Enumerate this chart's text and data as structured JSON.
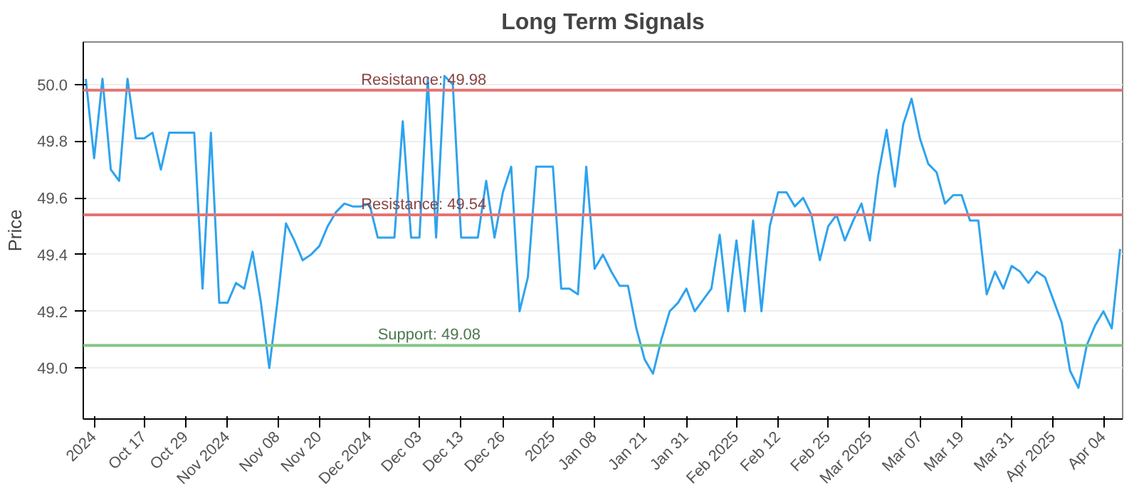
{
  "chart_data": {
    "type": "line",
    "title": "Long Term Signals",
    "ylabel": "Price",
    "categories": [
      null,
      "2024",
      null,
      null,
      null,
      null,
      null,
      "Oct 17",
      null,
      null,
      null,
      null,
      "Oct 29",
      null,
      null,
      null,
      null,
      "Nov 2024",
      null,
      null,
      null,
      null,
      null,
      "Nov 08",
      null,
      null,
      null,
      null,
      "Nov 20",
      null,
      null,
      null,
      null,
      null,
      "Dec 2024",
      null,
      null,
      null,
      null,
      null,
      "Dec 03",
      null,
      null,
      null,
      null,
      "Dec 13",
      null,
      null,
      null,
      null,
      "Dec 26",
      null,
      null,
      null,
      null,
      null,
      "2025",
      null,
      null,
      null,
      null,
      "Jan 08",
      null,
      null,
      null,
      null,
      null,
      "Jan 21",
      null,
      null,
      null,
      null,
      "Jan 31",
      null,
      null,
      null,
      null,
      null,
      "Feb 2025",
      null,
      null,
      null,
      null,
      "Feb 12",
      null,
      null,
      null,
      null,
      null,
      "Feb 25",
      null,
      null,
      null,
      null,
      "Mar 2025",
      null,
      null,
      null,
      null,
      null,
      "Mar 07",
      null,
      null,
      null,
      null,
      "Mar 19",
      null,
      null,
      null,
      null,
      null,
      "Mar 31",
      null,
      null,
      null,
      null,
      "Apr 2025",
      null,
      null,
      null,
      null,
      null,
      "Apr 04",
      null,
      null
    ],
    "series": [
      {
        "color": "#2ea3ee",
        "values": [
          50.02,
          49.74,
          50.02,
          49.7,
          49.66,
          50.02,
          49.81,
          49.81,
          49.83,
          49.7,
          49.83,
          49.83,
          49.83,
          49.83,
          49.28,
          49.83,
          49.23,
          49.23,
          49.3,
          49.28,
          49.41,
          49.23,
          49.0,
          49.24,
          49.51,
          49.45,
          49.38,
          49.4,
          49.43,
          49.5,
          49.55,
          49.58,
          49.57,
          49.57,
          49.58,
          49.46,
          49.46,
          49.46,
          49.87,
          49.46,
          49.46,
          50.02,
          49.46,
          50.03,
          50.0,
          49.46,
          49.46,
          49.46,
          49.66,
          49.46,
          49.62,
          49.71,
          49.2,
          49.32,
          49.71,
          49.71,
          49.71,
          49.28,
          49.28,
          49.26,
          49.71,
          49.35,
          49.4,
          49.34,
          49.29,
          49.29,
          49.14,
          49.03,
          48.98,
          49.1,
          49.2,
          49.23,
          49.28,
          49.2,
          49.24,
          49.28,
          49.47,
          49.2,
          49.45,
          49.2,
          49.52,
          49.2,
          49.5,
          49.62,
          49.62,
          49.57,
          49.6,
          49.54,
          49.38,
          49.5,
          49.54,
          49.45,
          49.52,
          49.58,
          49.45,
          49.68,
          49.84,
          49.64,
          49.86,
          49.95,
          49.81,
          49.72,
          49.69,
          49.58,
          49.61,
          49.61,
          49.52,
          49.52,
          49.26,
          49.34,
          49.28,
          49.36,
          49.34,
          49.3,
          49.34,
          49.32,
          49.24,
          49.16,
          48.99,
          48.93,
          49.08,
          49.15,
          49.2,
          49.14,
          49.42
        ]
      }
    ],
    "ylim": [
      48.82,
      50.15
    ],
    "yticks": [
      {
        "value": 49.0,
        "label": "49.0"
      },
      49.2,
      49.4,
      49.6,
      49.8,
      {
        "value": 50.0,
        "label": "50.0"
      }
    ],
    "grid": "y",
    "marker": "none",
    "line_style": "solid",
    "ref_lines": [
      {
        "axis": "y",
        "value": 49.98,
        "label": "Resistance: 49.98",
        "color": "#e57373"
      },
      {
        "axis": "y",
        "value": 49.54,
        "label": "Resistance: 49.54",
        "color": "#e57373"
      },
      {
        "axis": "y",
        "value": 49.08,
        "label": "Support: 49.08",
        "color": "#81c784"
      }
    ]
  }
}
